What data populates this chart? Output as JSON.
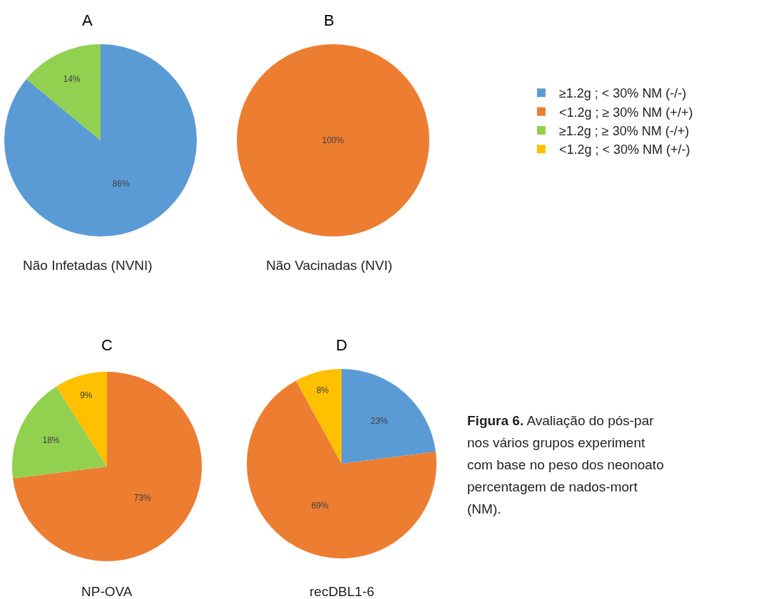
{
  "chart_data": [
    {
      "type": "pie",
      "title": "A",
      "xlabel": "Não Infetadas (NVNI)",
      "categories": [
        null,
        null
      ],
      "values": [
        86,
        14
      ],
      "value_labels": [
        "86%",
        "14%"
      ],
      "colors": [
        "#5b9bd5",
        "#92d050"
      ]
    },
    {
      "type": "pie",
      "title": "B",
      "xlabel": "Não Vacinadas (NVI)",
      "categories": [
        "≥1.2g ; < 30% NM (-/-)",
        "<1.2g ; ≥ 30% NM (+/+)",
        "≥1.2g ; ≥ 30% NM (-/+)",
        "<1.2g ; < 30% NM (+/-)"
      ],
      "values": [
        0,
        100,
        0,
        0
      ],
      "value_labels": [
        null,
        "100%",
        null,
        null
      ],
      "colors": [
        "#5b9bd5",
        "#ed7d31",
        "#92d050",
        "#ffc000"
      ],
      "legend": "right"
    },
    {
      "type": "pie",
      "title": "C",
      "xlabel": "NP-OVA",
      "categories": [
        null,
        null,
        null
      ],
      "values": [
        73,
        18,
        9
      ],
      "value_labels": [
        "73%",
        "18%",
        "9%"
      ],
      "colors": [
        "#ed7d31",
        "#92d050",
        "#ffc000"
      ]
    },
    {
      "type": "pie",
      "title": "D",
      "xlabel": "recDBL1-6",
      "categories": [
        null,
        null,
        null
      ],
      "values": [
        23,
        69,
        8
      ],
      "value_labels": [
        "23%",
        "69%",
        "8%"
      ],
      "colors": [
        "#5b9bd5",
        "#ed7d31",
        "#ffc000"
      ],
      "annotations": [
        "Figura 6. Avaliação do pós-par\nnos vários grupos experiment\ncom base no peso dos neonoato\npercentagem de nados-mort\n(NM)."
      ]
    }
  ]
}
